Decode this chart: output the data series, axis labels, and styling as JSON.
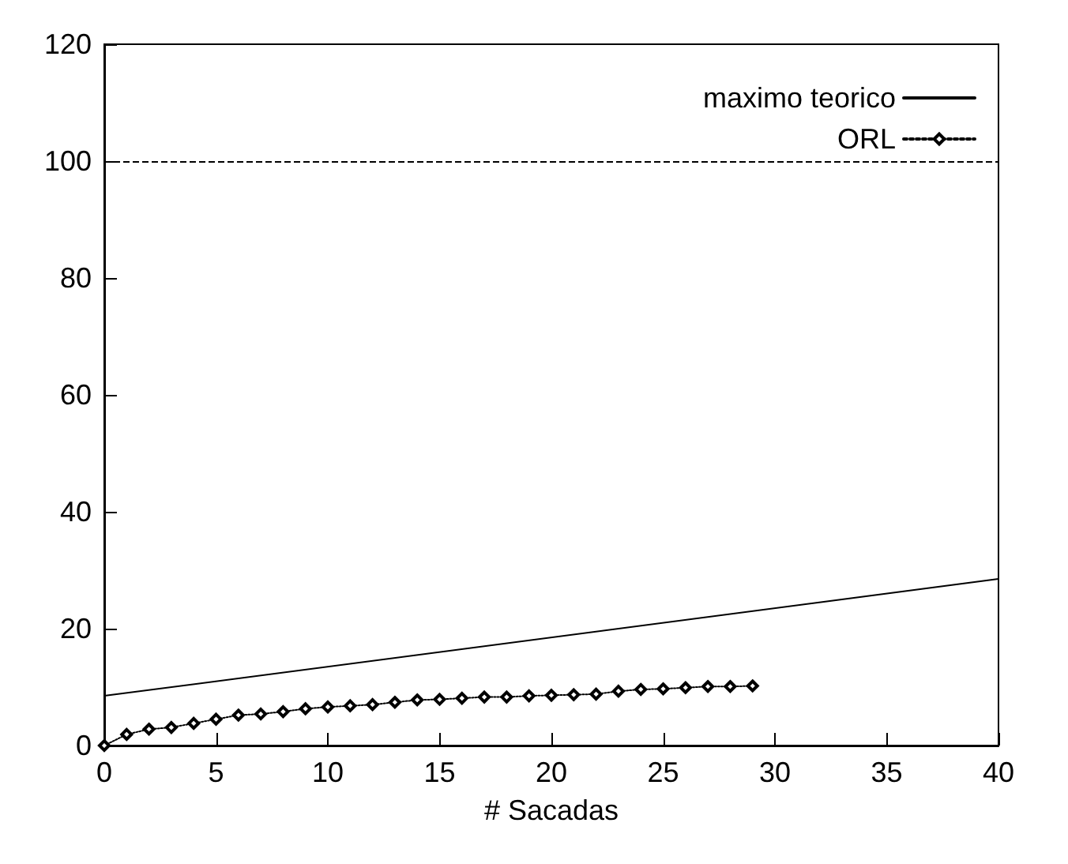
{
  "chart_data": {
    "type": "line",
    "xlabel": "# Sacadas",
    "xlim": [
      0,
      40
    ],
    "xticks": [
      0,
      5,
      10,
      15,
      20,
      25,
      30,
      35,
      40
    ],
    "ylim": [
      0,
      120
    ],
    "yticks": [
      0,
      20,
      40,
      60,
      80,
      100,
      120
    ],
    "grid": false,
    "legend": "top right",
    "ref_lines": [
      {
        "axis": "y",
        "value": 100,
        "line_style": "dashed",
        "color": "#000000"
      }
    ],
    "series": [
      {
        "name": "maximo teorico",
        "color": "#000000",
        "marker": "none",
        "line_style": "solid",
        "x": [
          0,
          40
        ],
        "values": [
          8.5,
          28.5
        ]
      },
      {
        "name": "ORL",
        "color": "#000000",
        "marker": "diamond",
        "line_style": "dotted",
        "x": [
          0,
          1,
          2,
          3,
          4,
          5,
          6,
          7,
          8,
          9,
          10,
          11,
          12,
          13,
          14,
          15,
          16,
          17,
          18,
          19,
          20,
          21,
          22,
          23,
          24,
          25,
          26,
          27,
          28,
          29
        ],
        "values": [
          0,
          1.9,
          2.8,
          3.1,
          3.8,
          4.5,
          5.2,
          5.4,
          5.8,
          6.3,
          6.6,
          6.8,
          7.0,
          7.4,
          7.8,
          7.9,
          8.1,
          8.3,
          8.3,
          8.5,
          8.6,
          8.7,
          8.8,
          9.3,
          9.6,
          9.7,
          9.9,
          10.1,
          10.1,
          10.2
        ]
      }
    ]
  }
}
